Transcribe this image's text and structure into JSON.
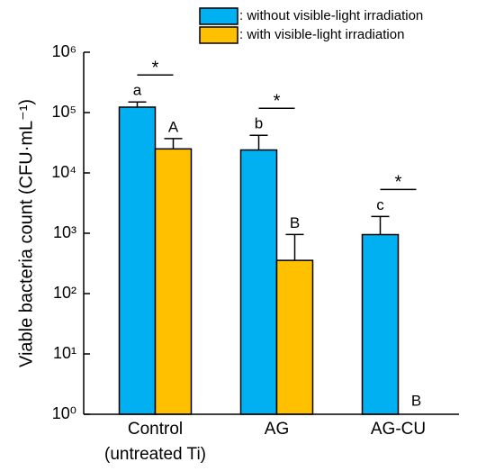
{
  "chart_data": {
    "type": "bar",
    "ylabel": "Viable bacteria count (CFU·mL⁻¹)",
    "categories": [
      "Control\n(untreated Ti)",
      "AG",
      "AG-CU"
    ],
    "series": [
      {
        "name": ": without visible-light irradiation",
        "color": "#00b0f0",
        "values": [
          123000,
          24000,
          950
        ],
        "errors": [
          27000,
          18000,
          950
        ],
        "letters": [
          "a",
          "b",
          "c"
        ]
      },
      {
        "name": ": with visible-light irradiation",
        "color": "#ffc000",
        "values": [
          25000,
          355,
          0
        ],
        "errors": [
          12000,
          600,
          null
        ],
        "letters": [
          "A",
          "B",
          "B"
        ]
      }
    ],
    "significance": [
      "*",
      "*",
      "*"
    ],
    "log_scale": true,
    "ylim": [
      1,
      1000000
    ],
    "yticks": [
      {
        "value": 1,
        "label": "10⁰"
      },
      {
        "value": 10,
        "label": "10¹"
      },
      {
        "value": 100,
        "label": "10²"
      },
      {
        "value": 1000,
        "label": "10³"
      },
      {
        "value": 10000,
        "label": "10⁴"
      },
      {
        "value": 100000,
        "label": "10⁵"
      },
      {
        "value": 1000000,
        "label": "10⁶"
      }
    ],
    "legend": "top"
  }
}
